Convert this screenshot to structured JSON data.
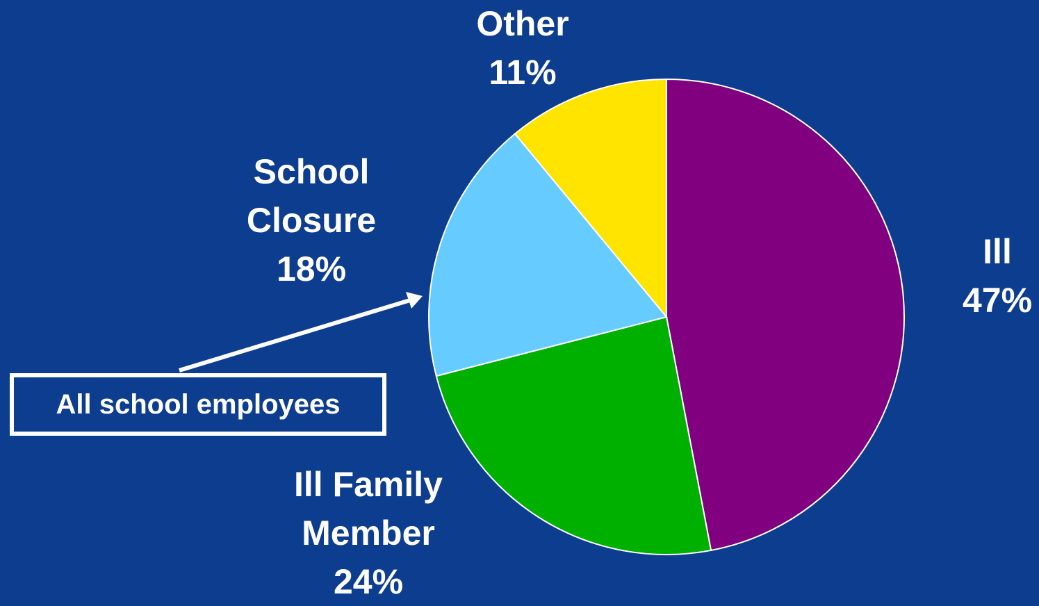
{
  "chart_data": {
    "type": "pie",
    "slices": [
      {
        "label": "Ill",
        "value": 47,
        "value_label": "47%",
        "color": "#800080"
      },
      {
        "label": "Ill Family Member",
        "value": 24,
        "value_label": "24%",
        "color": "#00b000"
      },
      {
        "label": "School Closure",
        "value": 18,
        "value_label": "18%",
        "color": "#66ccff"
      },
      {
        "label": "Other",
        "value": 11,
        "value_label": "11%",
        "color": "#ffe400"
      }
    ],
    "start_angle_deg": 0,
    "direction": "clockwise",
    "slice_border_color": "#ffffff"
  },
  "labels": {
    "other": {
      "name": "Other",
      "pct": "11%"
    },
    "school": {
      "line1": "School",
      "line2": "Closure",
      "pct": "18%"
    },
    "ill": {
      "name": "Ill",
      "pct": "47%"
    },
    "family": {
      "line1": "Ill Family",
      "line2": "Member",
      "pct": "24%"
    }
  },
  "callout": {
    "text": "All school employees",
    "points_to": "School Closure"
  },
  "colors": {
    "background": "#0d3d8e",
    "text": "#ffffff"
  }
}
